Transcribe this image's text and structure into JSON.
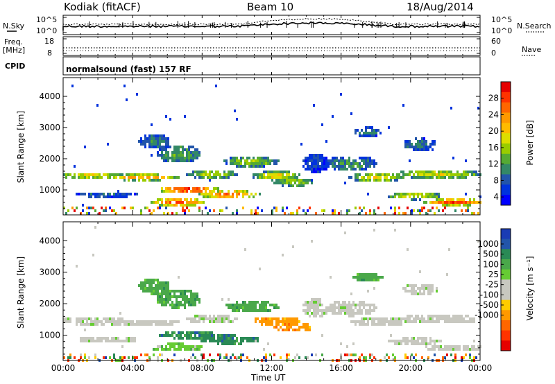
{
  "header": {
    "station": "Kodiak (fitACF)",
    "beam": "Beam 10",
    "date": "18/Aug/2014"
  },
  "strip_panels": {
    "nsky": {
      "label": "N.Sky",
      "ticks": [
        "10^5",
        "10^0"
      ]
    },
    "nsearch": {
      "label": "N.Search",
      "ticks": [
        "10^5",
        "10^0"
      ]
    },
    "freq": {
      "label_line1": "Freq.",
      "label_line2": "[MHz]",
      "ticks": [
        "18",
        "8"
      ]
    },
    "nave": {
      "label": "Nave",
      "ticks": [
        "60",
        "0"
      ]
    },
    "cpid": {
      "label": "CPID",
      "text": "normalsound (fast) 157 RF"
    }
  },
  "chart_data": [
    {
      "type": "heatmap",
      "panel": "power",
      "ylabel": "Slant Range [km]",
      "yticks": [
        1000,
        2000,
        3000,
        4000
      ],
      "ylim": [
        200,
        4600
      ],
      "xlim_hours": [
        0,
        24
      ],
      "colorbar": {
        "label": "Power [dB]",
        "ticks": [
          "28",
          "24",
          "20",
          "16",
          "12",
          "8",
          "4"
        ],
        "colors": [
          "#e60000",
          "#ff3300",
          "#ff6600",
          "#ff9900",
          "#ffbb00",
          "#dddd00",
          "#99cc00",
          "#55aa33",
          "#338866",
          "#2255aa",
          "#0033dd",
          "#0000ff"
        ]
      }
    },
    {
      "type": "heatmap",
      "panel": "velocity",
      "ylabel": "Slant Range [km]",
      "yticks": [
        1000,
        2000,
        3000,
        4000
      ],
      "ylim": [
        200,
        4600
      ],
      "xlim_hours": [
        0,
        24
      ],
      "colorbar": {
        "label": "Velocity [m s⁻¹]",
        "ticks": [
          "1000",
          "500",
          "100",
          "25",
          "-25",
          "-100",
          "-500",
          "-1000"
        ],
        "colors": [
          "#1a3cb4",
          "#2255aa",
          "#2a8a55",
          "#4aa84a",
          "#66cc33",
          "#c8c8c0",
          "#c8c8c0",
          "#ffcc00",
          "#ff9900",
          "#ff6600",
          "#ff3300",
          "#e60000"
        ]
      }
    }
  ],
  "xaxis": {
    "ticks": [
      "00:00",
      "04:00",
      "08:00",
      "12:00",
      "16:00",
      "20:00",
      "00:00"
    ],
    "label": "Time UT"
  }
}
